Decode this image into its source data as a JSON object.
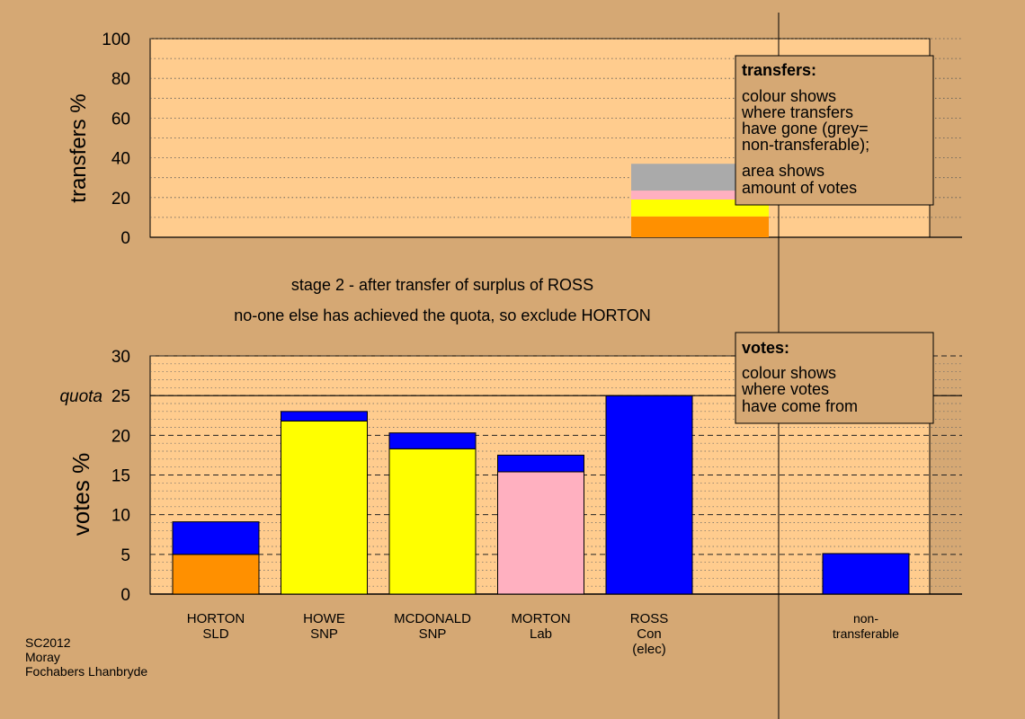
{
  "colors": {
    "background": "#d5a874",
    "panel": "#ffcc8e",
    "blue": "#0000ff",
    "yellow": "#ffff00",
    "pink": "#ffb0c0",
    "orange": "#ff9000",
    "grey": "#aaaaaa"
  },
  "stage": {
    "line1": "stage 2 - after transfer of surplus of ROSS",
    "line2": "no-one else has achieved the quota, so exclude HORTON"
  },
  "transfers_legend": {
    "title": "transfers:",
    "text1": [
      "colour shows",
      "where transfers",
      "have gone (grey=",
      "non-transferable);"
    ],
    "text2": [
      "area shows",
      "amount of votes"
    ]
  },
  "votes_legend": {
    "title": "votes:",
    "text": [
      "colour shows",
      "where votes",
      "have come from"
    ]
  },
  "footer": {
    "line1": "SC2012",
    "line2": "Moray",
    "line3": "Fochabers Lhanbryde"
  },
  "chart_data": [
    {
      "type": "bar",
      "stacked": true,
      "ylabel": "transfers %",
      "ylim": [
        0,
        100
      ],
      "yticks": [
        0,
        20,
        40,
        60,
        80,
        100
      ],
      "grid": true,
      "bars": [
        {
          "slot": 4,
          "segments": [
            {
              "color": "orange",
              "value": 10.5
            },
            {
              "color": "yellow",
              "value": 8.5
            },
            {
              "color": "pink",
              "value": 4.5
            },
            {
              "color": "grey",
              "value": 13.5
            }
          ]
        }
      ]
    },
    {
      "type": "bar",
      "stacked": true,
      "ylabel": "votes %",
      "ylim": [
        0,
        30
      ],
      "yticks": [
        0,
        5,
        10,
        15,
        20,
        25,
        30
      ],
      "grid": true,
      "quota": {
        "value": 25,
        "label": "quota"
      },
      "categories": [
        {
          "lines": [
            "HORTON",
            "SLD"
          ],
          "segments": [
            {
              "color": "orange",
              "value": 5
            },
            {
              "color": "blue",
              "value": 4.1
            }
          ]
        },
        {
          "lines": [
            "HOWE",
            "SNP"
          ],
          "segments": [
            {
              "color": "yellow",
              "value": 21.8
            },
            {
              "color": "blue",
              "value": 1.2
            }
          ]
        },
        {
          "lines": [
            "MCDONALD",
            "SNP"
          ],
          "segments": [
            {
              "color": "yellow",
              "value": 18.3
            },
            {
              "color": "blue",
              "value": 2
            }
          ]
        },
        {
          "lines": [
            "MORTON",
            "Lab"
          ],
          "segments": [
            {
              "color": "pink",
              "value": 15.4
            },
            {
              "color": "blue",
              "value": 2.1
            }
          ]
        },
        {
          "lines": [
            "ROSS",
            "Con",
            "(elec)"
          ],
          "segments": [
            {
              "color": "blue",
              "value": 25
            }
          ]
        },
        {
          "lines": [
            "non-",
            "transferable"
          ],
          "segments": [
            {
              "color": "blue",
              "value": 5.1
            }
          ]
        }
      ]
    }
  ]
}
